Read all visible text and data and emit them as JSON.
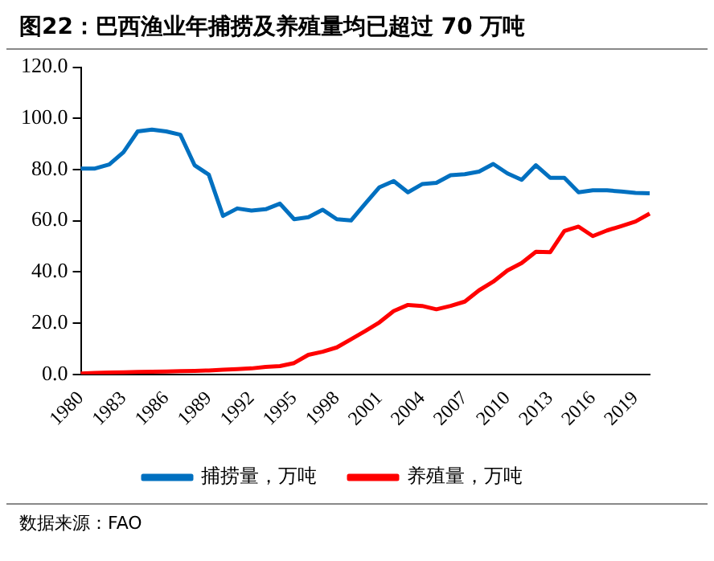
{
  "chart_data": {
    "type": "line",
    "title": "图22：巴西渔业年捕捞及养殖量均已超过 70 万吨",
    "categories": [
      "1980",
      null,
      null,
      "1983",
      null,
      null,
      "1986",
      null,
      null,
      "1989",
      null,
      null,
      "1992",
      null,
      null,
      "1995",
      null,
      null,
      "1998",
      null,
      null,
      "2001",
      null,
      null,
      "2004",
      null,
      null,
      "2007",
      null,
      null,
      "2010",
      null,
      null,
      "2013",
      null,
      null,
      "2016",
      null,
      null,
      "2019",
      null
    ],
    "series": [
      {
        "name": "捕捞量，万吨",
        "color": "#0070c0",
        "values": [
          80.4,
          80.4,
          82,
          86.8,
          94.9,
          95.6,
          94.9,
          93.6,
          81.7,
          78,
          61.9,
          64.8,
          64,
          64.5,
          66.7,
          60.6,
          61.4,
          64.3,
          60.6,
          60.1,
          66.7,
          73.1,
          75.5,
          71.1,
          74.3,
          74.8,
          77.8,
          78.2,
          79.2,
          82.2,
          78.5,
          76,
          81.7,
          76.8,
          76.8,
          71.1,
          71.9,
          71.9,
          71.4,
          70.9,
          70.7
        ]
      },
      {
        "name": "养殖量，万吨",
        "color": "#ff0000",
        "values": [
          0.3,
          0.5,
          0.7,
          0.8,
          0.9,
          1.0,
          1.1,
          1.2,
          1.3,
          1.5,
          1.8,
          2.0,
          2.3,
          2.9,
          3.2,
          4.4,
          7.6,
          8.8,
          10.5,
          13.7,
          16.9,
          20.3,
          24.7,
          27.1,
          26.7,
          25.4,
          26.7,
          28.4,
          32.8,
          36.2,
          40.6,
          43.5,
          47.9,
          47.7,
          56,
          57.7,
          54,
          56.2,
          57.9,
          59.7,
          62.8
        ]
      }
    ],
    "ylim": [
      0,
      120
    ],
    "yticks": [
      {
        "value": 0,
        "label": "0.0"
      },
      {
        "value": 20,
        "label": "20.0"
      },
      {
        "value": 40,
        "label": "40.0"
      },
      {
        "value": 60,
        "label": "60.0"
      },
      {
        "value": 80,
        "label": "80.0"
      },
      {
        "value": 100,
        "label": "100.0"
      },
      {
        "value": 120,
        "label": "120.0"
      }
    ],
    "grid": false,
    "legend": "bottom",
    "marker": "none",
    "line_style": "solid",
    "annotations": [
      "数据来源：FAO"
    ]
  }
}
